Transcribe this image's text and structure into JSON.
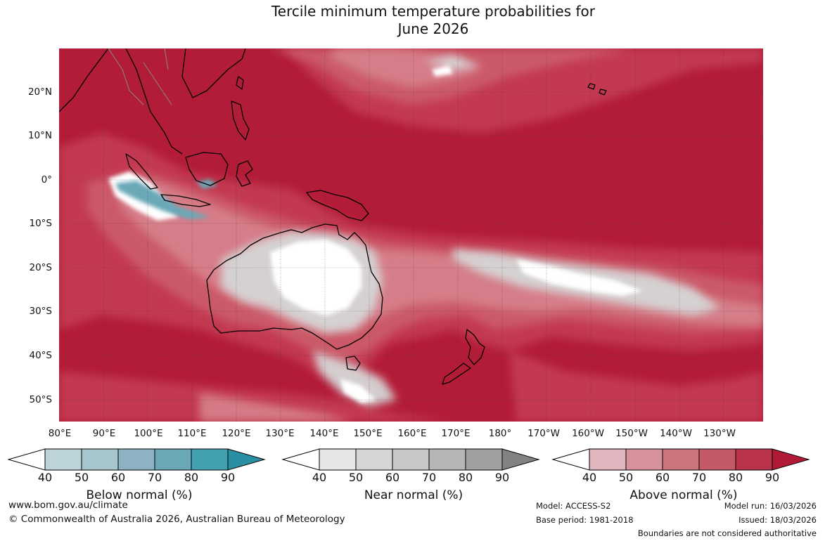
{
  "title_line1": "Tercile minimum temperature probabilities for",
  "title_line2": "June 2026",
  "map": {
    "lat_labels": [
      "20°N",
      "10°N",
      "0°",
      "10°S",
      "20°S",
      "30°S",
      "40°S",
      "50°S"
    ],
    "lon_labels": [
      "80°E",
      "90°E",
      "100°E",
      "110°E",
      "120°E",
      "130°E",
      "140°E",
      "150°E",
      "160°E",
      "170°E",
      "180°",
      "170°W",
      "160°W",
      "150°W",
      "140°W",
      "130°W"
    ],
    "colors": {
      "ocean_base": "#b31c38",
      "above_80": "#c43a52",
      "above_70": "#cc5d6c",
      "above_60": "#d7828c",
      "above_50": "#e1b2ba",
      "near_50": "#d6d6d6",
      "near_40": "#e6e6e6",
      "below_60": "#8db3c3",
      "below_70": "#6aa8b8",
      "white": "#ffffff"
    }
  },
  "colorbars": [
    {
      "name": "Below normal (%)",
      "ticks": [
        "40",
        "50",
        "60",
        "70",
        "80",
        "90"
      ],
      "colors": [
        "#ffffff",
        "#bcd3d9",
        "#a6c6cd",
        "#8db3c3",
        "#6aa8b8",
        "#43a0b0",
        "#2b8fa3"
      ]
    },
    {
      "name": "Near normal (%)",
      "ticks": [
        "40",
        "50",
        "60",
        "70",
        "80",
        "90"
      ],
      "colors": [
        "#ffffff",
        "#e6e6e6",
        "#d6d6d6",
        "#c8c8c8",
        "#b6b6b6",
        "#a0a0a0",
        "#828282"
      ]
    },
    {
      "name": "Above normal (%)",
      "ticks": [
        "40",
        "50",
        "60",
        "70",
        "80",
        "90"
      ],
      "colors": [
        "#ffffff",
        "#e1b5bd",
        "#d7929b",
        "#cc747d",
        "#c45a68",
        "#b9334b",
        "#b01a36"
      ]
    }
  ],
  "footer": {
    "website": "www.bom.gov.au/climate",
    "copyright": "© Commonwealth of Australia 2026, Australian Bureau of Meteorology",
    "model": "Model: ACCESS-S2",
    "base_period": "Base period: 1981-2018",
    "model_run": "Model run: 16/03/2026",
    "issued": "Issued: 18/03/2026",
    "disclaimer": "Boundaries are not considered authoritative"
  }
}
